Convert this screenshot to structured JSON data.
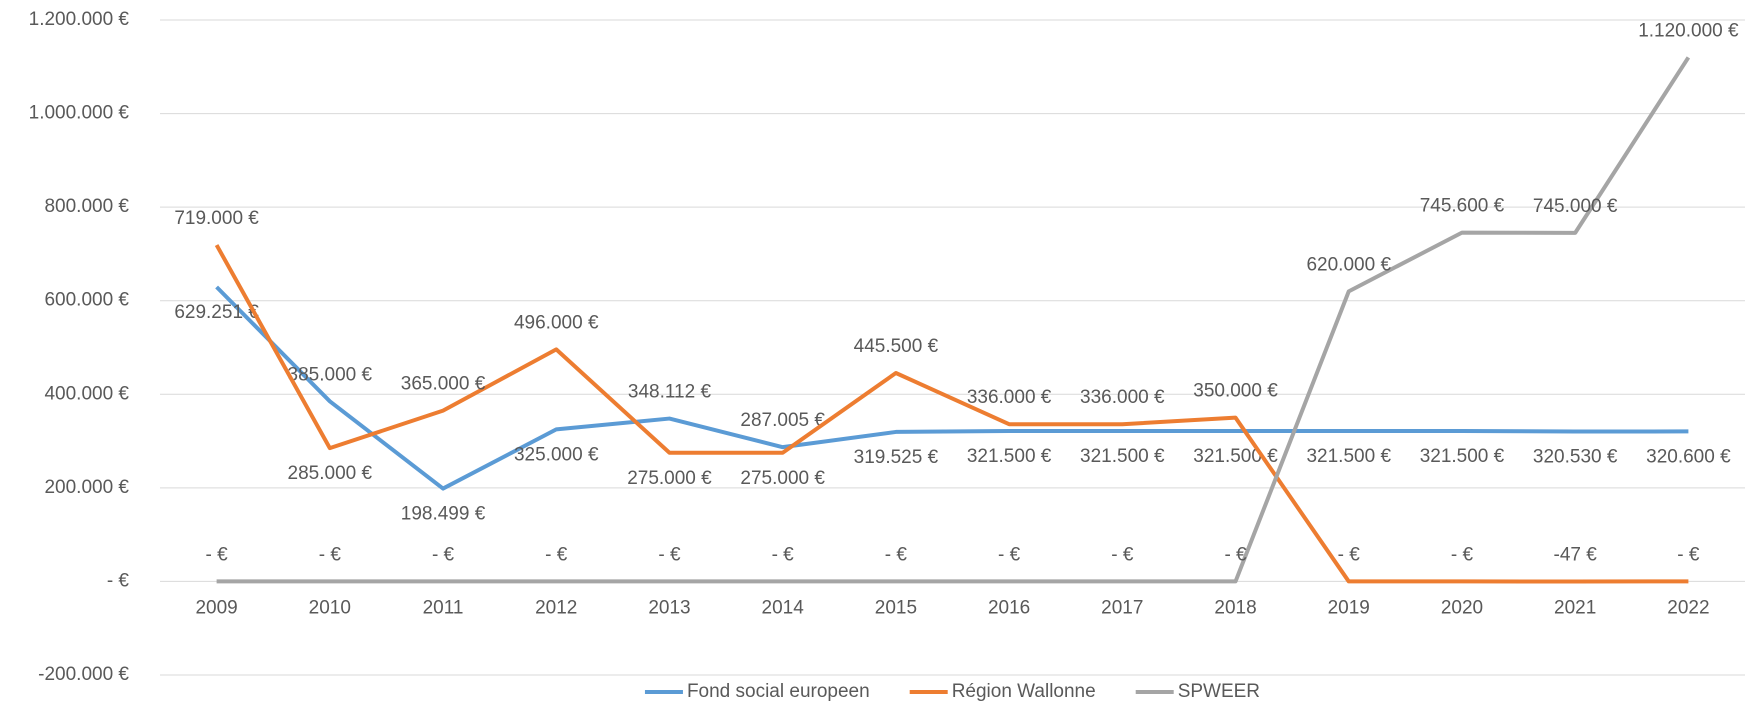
{
  "chart_data": {
    "type": "line",
    "categories": [
      "2009",
      "2010",
      "2011",
      "2012",
      "2013",
      "2014",
      "2015",
      "2016",
      "2017",
      "2018",
      "2019",
      "2020",
      "2021",
      "2022"
    ],
    "series": [
      {
        "name": "Fond social europeen",
        "color": "#5b9bd5",
        "values": [
          629251,
          385000,
          198499,
          325000,
          348112,
          287005,
          319525,
          321500,
          321500,
          321500,
          321500,
          321500,
          320530,
          320600
        ],
        "value_labels": [
          "629.251 €",
          "385.000 €",
          "198.499 €",
          "325.000 €",
          "348.112 €",
          "287.005 €",
          "319.525 €",
          "321.500 €",
          "321.500 €",
          "321.500 €",
          "321.500 €",
          "321.500 €",
          "320.530 €",
          "320.600 €"
        ]
      },
      {
        "name": "Région Wallonne",
        "color": "#ed7d31",
        "values": [
          719000,
          285000,
          365000,
          496000,
          275000,
          275000,
          445500,
          336000,
          336000,
          350000,
          0,
          0,
          -47,
          0
        ],
        "value_labels": [
          "719.000 €",
          "285.000 €",
          "365.000 €",
          "496.000 €",
          "275.000 €",
          "275.000 €",
          "445.500 €",
          "336.000 €",
          "336.000 €",
          "350.000 €",
          "-  €",
          "-  €",
          "-47 €",
          "-  €"
        ]
      },
      {
        "name": "SPWEER",
        "color": "#a5a5a5",
        "values": [
          0,
          0,
          0,
          0,
          0,
          0,
          0,
          0,
          0,
          0,
          620000,
          745600,
          745000,
          1120000
        ],
        "value_labels": [
          "-  €",
          "-  €",
          "-  €",
          "-  €",
          "-  €",
          "-  €",
          "-  €",
          "-  €",
          "-  €",
          "-  €",
          "620.000 €",
          "745.600 €",
          "745.000 €",
          "1.120.000 €"
        ]
      }
    ],
    "ylim": [
      -200000,
      1200000
    ],
    "yticks": [
      {
        "value": -200000,
        "label": "-200.000 €"
      },
      {
        "value": 0,
        "label": "-  €"
      },
      {
        "value": 200000,
        "label": "200.000 €"
      },
      {
        "value": 400000,
        "label": "400.000 €"
      },
      {
        "value": 600000,
        "label": "600.000 €"
      },
      {
        "value": 800000,
        "label": "800.000 €"
      },
      {
        "value": 1000000,
        "label": "1.000.000 €"
      },
      {
        "value": 1200000,
        "label": "1.200.000 €"
      }
    ],
    "grid": true,
    "legend": "bottom"
  }
}
